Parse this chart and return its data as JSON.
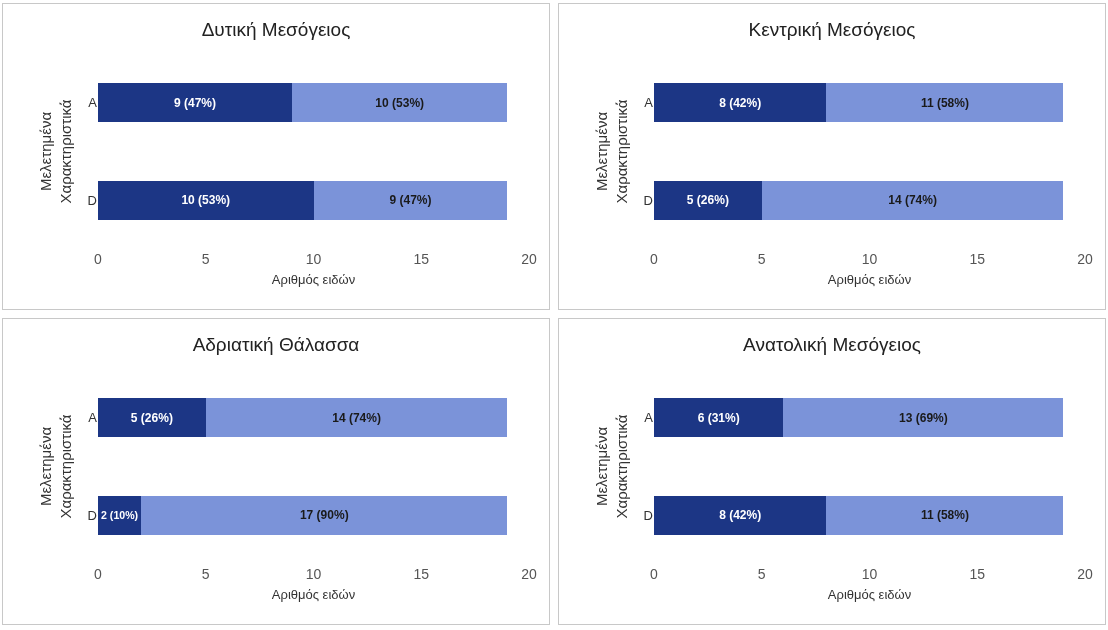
{
  "chart_data": [
    {
      "type": "bar",
      "orientation": "horizontal",
      "stacked": true,
      "title": "Δυτική Μεσόγειος",
      "xlabel": "Αριθμός ειδών",
      "ylabel": "Μελετημένα Χαρακτηριστικά",
      "categories": [
        "A",
        "D"
      ],
      "xlim": [
        0,
        20
      ],
      "xticks": [
        0,
        5,
        10,
        15,
        20
      ],
      "grid": false,
      "series": [
        {
          "color": "#1c3685",
          "values": [
            9,
            10
          ],
          "value_labels": [
            "9 (47%)",
            "10 (53%)"
          ]
        },
        {
          "color": "#7b93d9",
          "values": [
            10,
            9
          ],
          "value_labels": [
            "10 (53%)",
            "9 (47%)"
          ]
        }
      ]
    },
    {
      "type": "bar",
      "orientation": "horizontal",
      "stacked": true,
      "title": "Κεντρική Μεσόγειος",
      "xlabel": "Αριθμός ειδών",
      "ylabel": "Μελετημένα Χαρακτηριστικά",
      "categories": [
        "A",
        "D"
      ],
      "xlim": [
        0,
        20
      ],
      "xticks": [
        0,
        5,
        10,
        15,
        20
      ],
      "grid": false,
      "series": [
        {
          "color": "#1c3685",
          "values": [
            8,
            5
          ],
          "value_labels": [
            "8 (42%)",
            "5 (26%)"
          ]
        },
        {
          "color": "#7b93d9",
          "values": [
            11,
            14
          ],
          "value_labels": [
            "11 (58%)",
            "14 (74%)"
          ]
        }
      ]
    },
    {
      "type": "bar",
      "orientation": "horizontal",
      "stacked": true,
      "title": "Αδριατική Θάλασσα",
      "xlabel": "Αριθμός ειδών",
      "ylabel": "Μελετημένα Χαρακτηριστικά",
      "categories": [
        "A",
        "D"
      ],
      "xlim": [
        0,
        20
      ],
      "xticks": [
        0,
        5,
        10,
        15,
        20
      ],
      "grid": false,
      "series": [
        {
          "color": "#1c3685",
          "values": [
            5,
            2
          ],
          "value_labels": [
            "5 (26%)",
            "2 (10%)"
          ]
        },
        {
          "color": "#7b93d9",
          "values": [
            14,
            17
          ],
          "value_labels": [
            "14 (74%)",
            "17 (90%)"
          ]
        }
      ]
    },
    {
      "type": "bar",
      "orientation": "horizontal",
      "stacked": true,
      "title": "Ανατολική Μεσόγειος",
      "xlabel": "Αριθμός ειδών",
      "ylabel": "Μελετημένα Χαρακτηριστικά",
      "categories": [
        "A",
        "D"
      ],
      "xlim": [
        0,
        20
      ],
      "xticks": [
        0,
        5,
        10,
        15,
        20
      ],
      "grid": false,
      "series": [
        {
          "color": "#1c3685",
          "values": [
            6,
            8
          ],
          "value_labels": [
            "6 (31%)",
            "8 (42%)"
          ]
        },
        {
          "color": "#7b93d9",
          "values": [
            13,
            11
          ],
          "value_labels": [
            "13 (69%)",
            "11 (58%)"
          ]
        }
      ]
    }
  ]
}
